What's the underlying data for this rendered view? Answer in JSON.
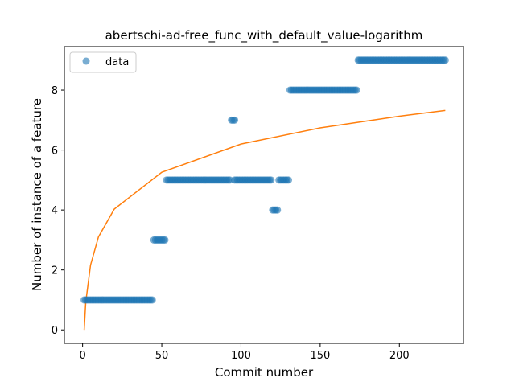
{
  "chart_data": {
    "type": "scatter",
    "title": "abertschi-ad-free_func_with_default_value-logarithm",
    "xlabel": "Commit number",
    "ylabel": "Number of instance of a feature",
    "xlim": [
      -11.5,
      240.5
    ],
    "ylim": [
      -0.45,
      9.45
    ],
    "xticks": [
      0,
      50,
      100,
      150,
      200
    ],
    "yticks": [
      0,
      2,
      4,
      6,
      8
    ],
    "grid": false,
    "legend_position": "upper left",
    "series": [
      {
        "name": "data",
        "kind": "scatter",
        "color": "#1f77b4",
        "segments": [
          {
            "x_start": 1,
            "x_end": 44,
            "y": 1
          },
          {
            "x_start": 45,
            "x_end": 52,
            "y": 3
          },
          {
            "x_start": 53,
            "x_end": 93,
            "y": 5
          },
          {
            "x_start": 94,
            "x_end": 96,
            "y": 7
          },
          {
            "x_start": 96,
            "x_end": 119,
            "y": 5
          },
          {
            "x_start": 120,
            "x_end": 123,
            "y": 4
          },
          {
            "x_start": 124,
            "x_end": 130,
            "y": 5
          },
          {
            "x_start": 131,
            "x_end": 173,
            "y": 8
          },
          {
            "x_start": 174,
            "x_end": 229,
            "y": 9
          }
        ]
      },
      {
        "kind": "line",
        "color": "#ff7f0e",
        "points": [
          [
            1,
            0
          ],
          [
            2,
            0.93
          ],
          [
            5,
            2.16
          ],
          [
            10,
            3.1
          ],
          [
            20,
            4.03
          ],
          [
            50,
            5.26
          ],
          [
            100,
            6.2
          ],
          [
            150,
            6.74
          ],
          [
            200,
            7.13
          ],
          [
            229,
            7.32
          ]
        ]
      }
    ]
  }
}
